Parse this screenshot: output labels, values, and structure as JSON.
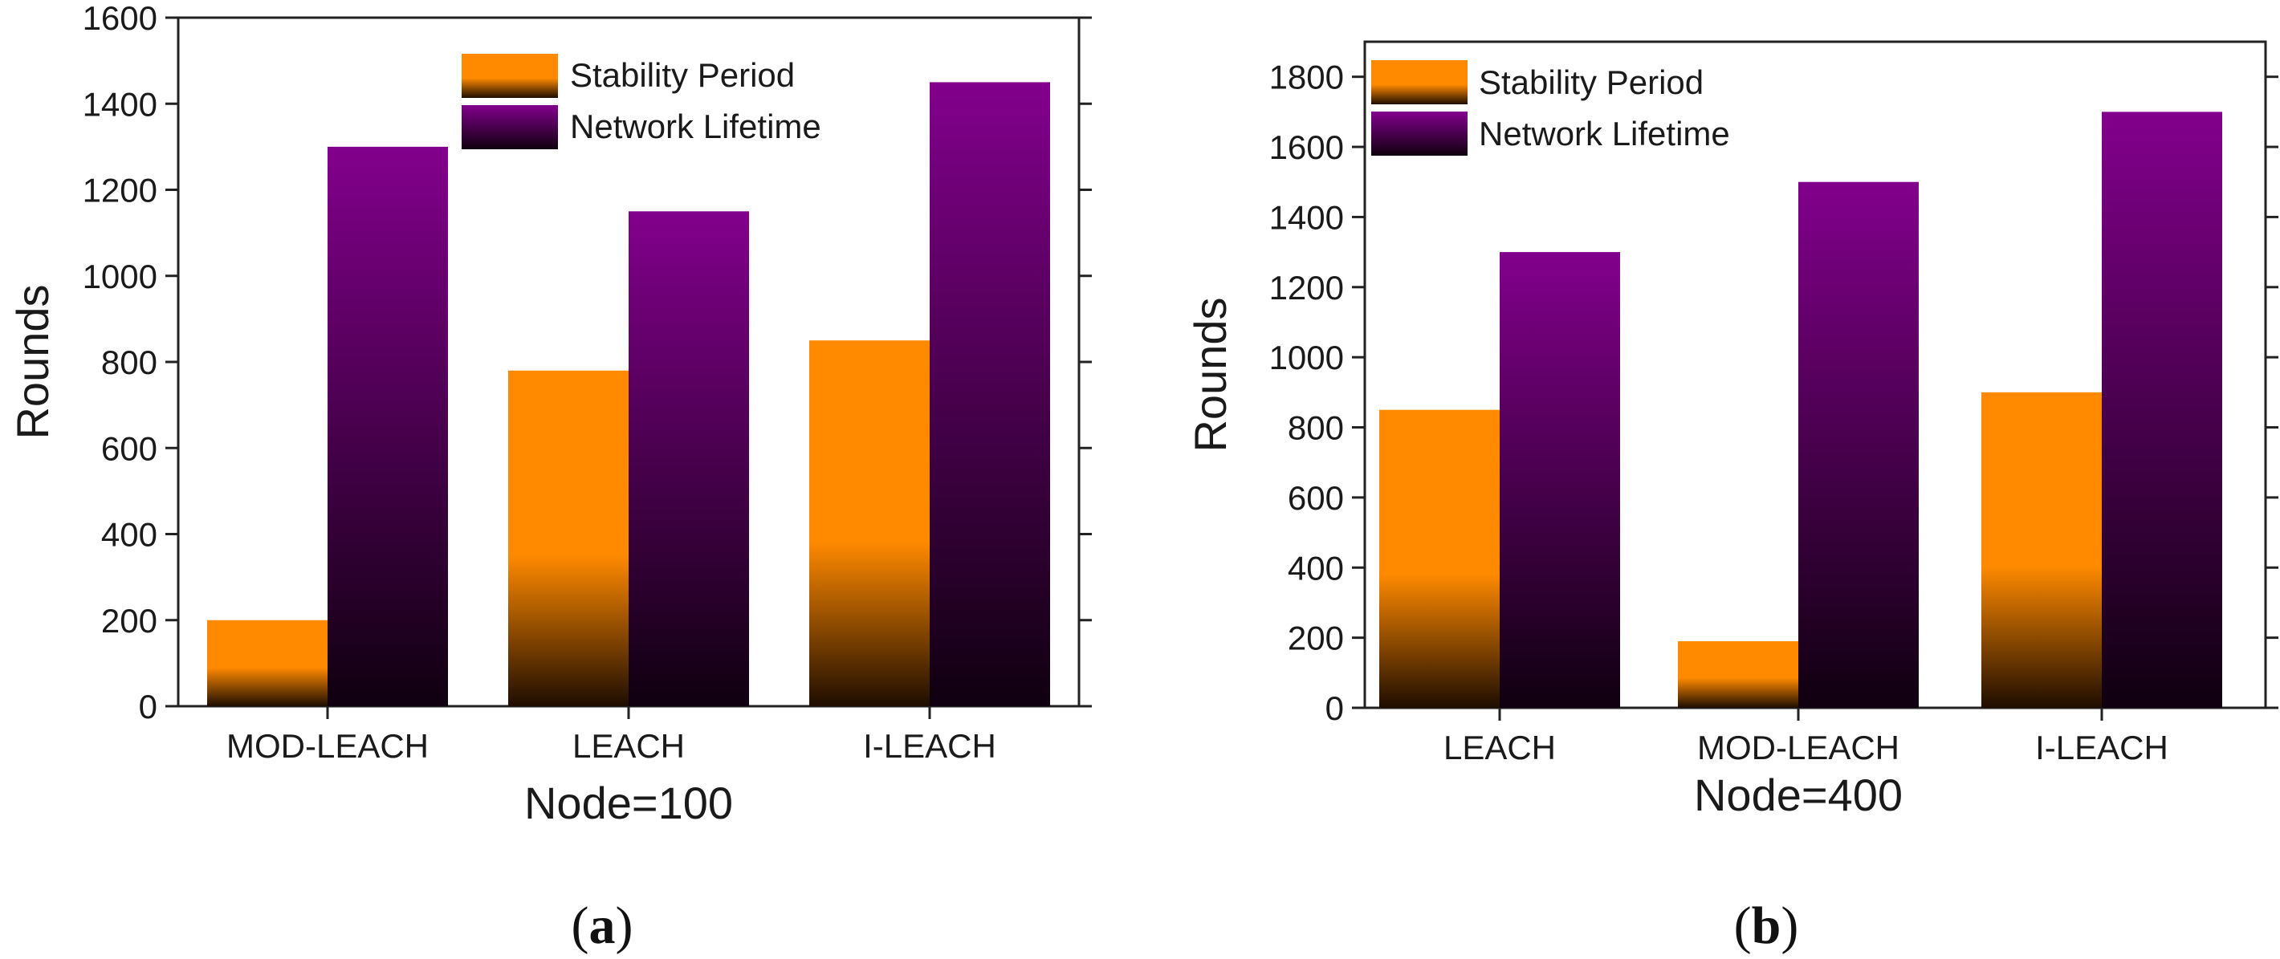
{
  "colors": {
    "stability_top": "#ff8a00",
    "stability_bottom": "#1e0d00",
    "lifetime_top": "#82008c",
    "lifetime_bottom": "#0f000f",
    "axis": "#222222"
  },
  "chart_data": [
    {
      "type": "bar",
      "panel": "a",
      "caption": "a",
      "xlabel": "Node=100",
      "ylabel": "Rounds",
      "categories": [
        "MOD-LEACH",
        "LEACH",
        "I-LEACH"
      ],
      "series": [
        {
          "name": "Stability Period",
          "values": [
            200,
            780,
            850
          ]
        },
        {
          "name": "Network Lifetime",
          "values": [
            1300,
            1150,
            1450
          ]
        }
      ],
      "ylim": [
        0,
        1600
      ],
      "yticks": [
        0,
        200,
        400,
        600,
        800,
        1000,
        1200,
        1400,
        1600
      ],
      "legend_position": "top-right",
      "grid": false
    },
    {
      "type": "bar",
      "panel": "b",
      "caption": "b",
      "xlabel": "Node=400",
      "ylabel": "Rounds",
      "categories": [
        "LEACH",
        "MOD-LEACH",
        "I-LEACH"
      ],
      "series": [
        {
          "name": "Stability Period",
          "values": [
            850,
            190,
            900
          ]
        },
        {
          "name": "Network Lifetime",
          "values": [
            1300,
            1500,
            1700
          ]
        }
      ],
      "ylim": [
        0,
        1900
      ],
      "yticks": [
        0,
        200,
        400,
        600,
        800,
        1000,
        1200,
        1400,
        1600,
        1800
      ],
      "legend_position": "top-left",
      "grid": false
    }
  ]
}
